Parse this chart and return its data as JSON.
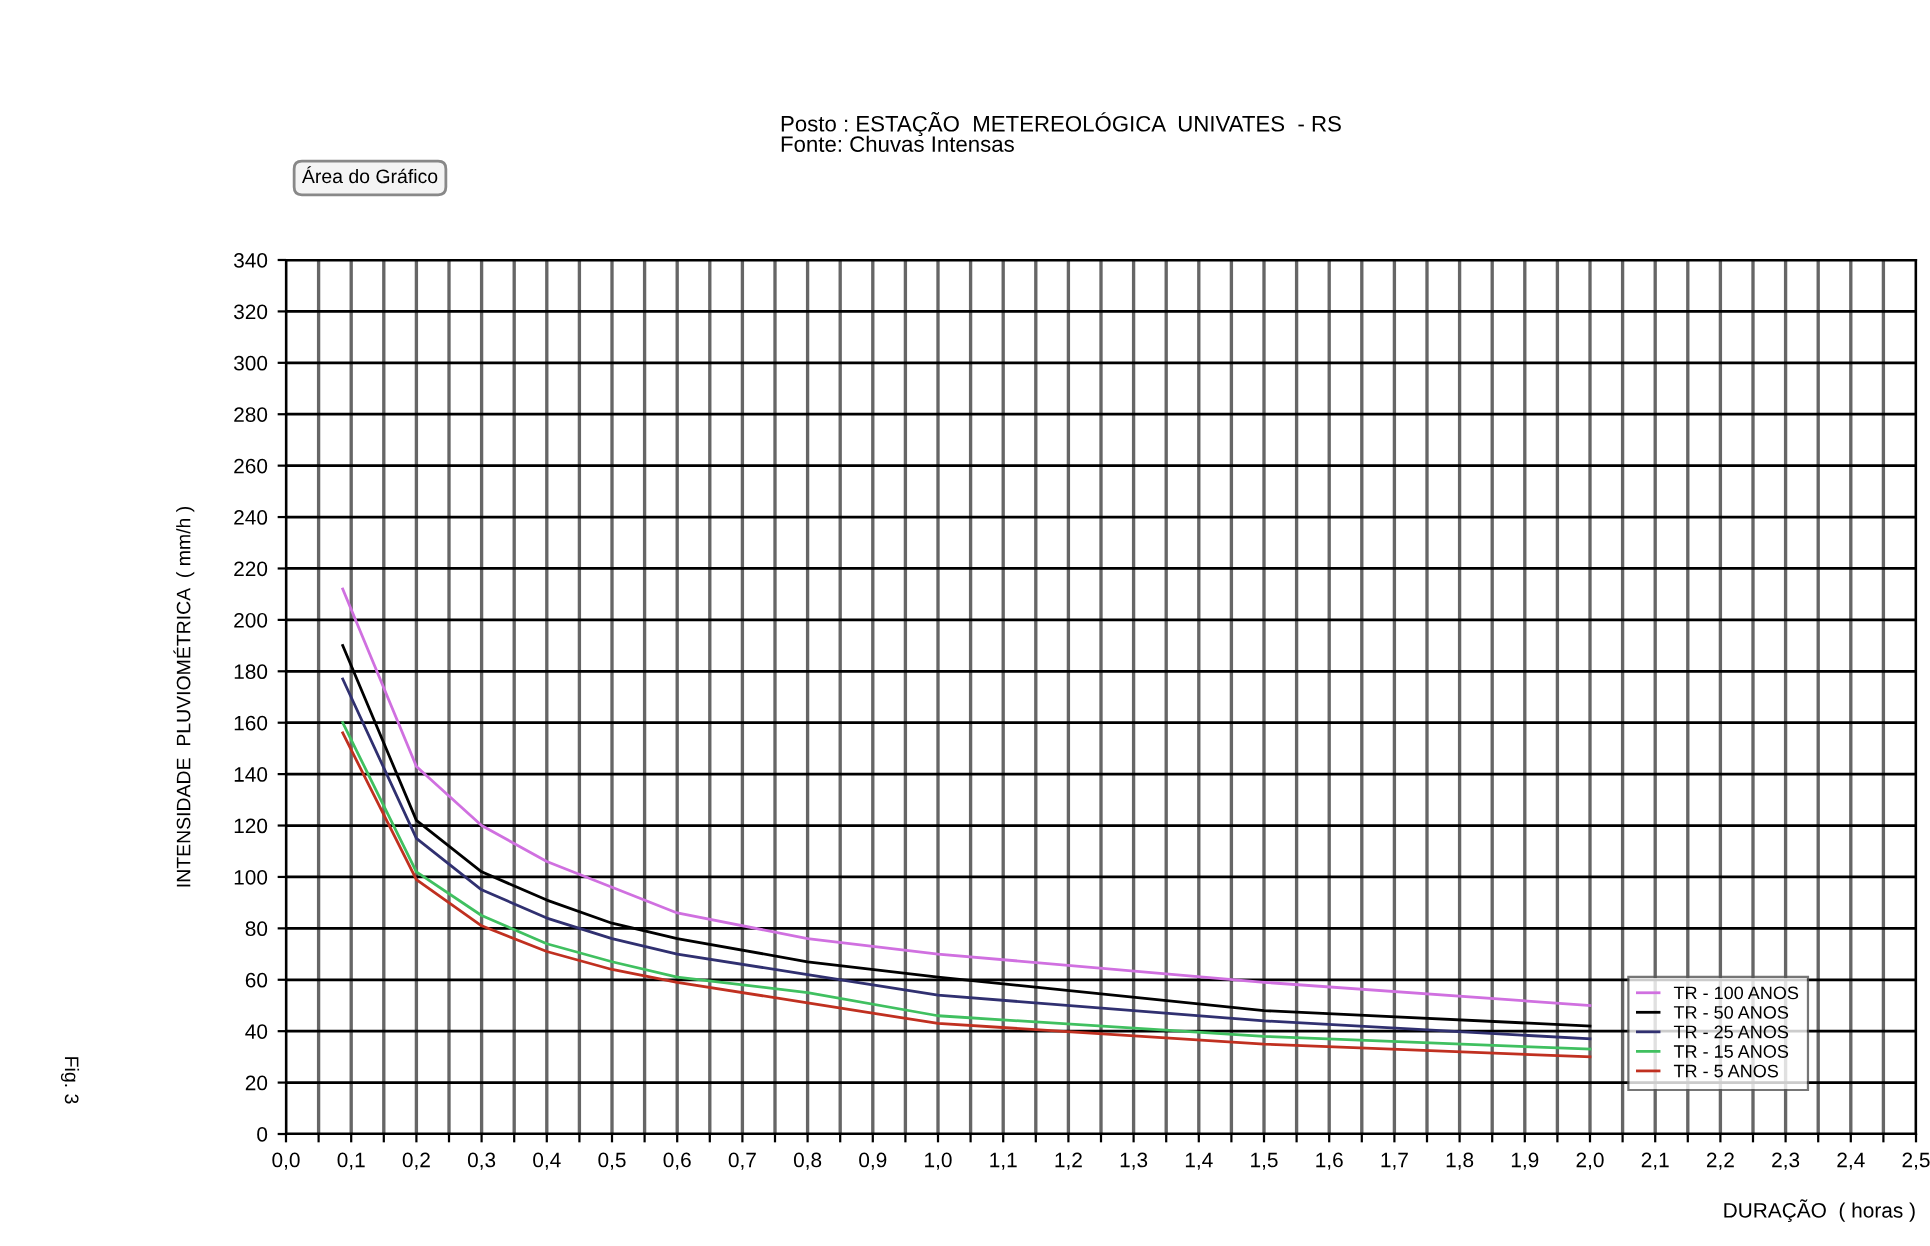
{
  "chart_data": {
    "type": "line",
    "title": "Posto : ESTAÇÃO  METEREOLÓGICA  UNIVATES  - RS",
    "subtitle": "Fonte: Chuvas Intensas",
    "xlabel": "DURAÇÃO  ( horas )",
    "ylabel": "INTENSIDADE  PLUVIOMÉTRICA  ( mm/h )",
    "annotations": [
      "Área do Gráfico",
      "Fig. 3"
    ],
    "x": [
      0.087,
      0.2,
      0.3,
      0.4,
      0.5,
      0.6,
      0.8,
      1.0,
      1.5,
      2.0
    ],
    "series": [
      {
        "name": "TR - 100 ANOS",
        "color": "#d070e0",
        "values": [
          212,
          143,
          120,
          106,
          96,
          86,
          76,
          70,
          59,
          50
        ]
      },
      {
        "name": "TR - 50 ANOS",
        "color": "#000000",
        "values": [
          190,
          122,
          102,
          91,
          82,
          76,
          67,
          61,
          48,
          42
        ]
      },
      {
        "name": "TR - 25 ANOS",
        "color": "#303070",
        "values": [
          177,
          115,
          95,
          84,
          76,
          70,
          62,
          54,
          44,
          37
        ]
      },
      {
        "name": "TR - 15 ANOS",
        "color": "#40c060",
        "values": [
          160,
          102,
          85,
          74,
          67,
          61,
          55,
          46,
          38,
          33
        ]
      },
      {
        "name": "TR - 5 ANOS",
        "color": "#c03020",
        "values": [
          156,
          99,
          81,
          71,
          64,
          59,
          51,
          43,
          35,
          30
        ]
      }
    ],
    "xlim": [
      0,
      2.5
    ],
    "xticks": [
      {
        "value": 0,
        "label": "0,0"
      },
      {
        "value": 0.05,
        "label": null
      },
      {
        "value": 0.1,
        "label": "0,1"
      },
      {
        "value": 0.15,
        "label": null
      },
      {
        "value": 0.2,
        "label": "0,2"
      },
      {
        "value": 0.25,
        "label": null
      },
      {
        "value": 0.3,
        "label": "0,3"
      },
      {
        "value": 0.35,
        "label": null
      },
      {
        "value": 0.4,
        "label": "0,4"
      },
      {
        "value": 0.45,
        "label": null
      },
      {
        "value": 0.5,
        "label": "0,5"
      },
      {
        "value": 0.55,
        "label": null
      },
      {
        "value": 0.6,
        "label": "0,6"
      },
      {
        "value": 0.65,
        "label": null
      },
      {
        "value": 0.7,
        "label": "0,7"
      },
      {
        "value": 0.75,
        "label": null
      },
      {
        "value": 0.8,
        "label": "0,8"
      },
      {
        "value": 0.85,
        "label": null
      },
      {
        "value": 0.9,
        "label": "0,9"
      },
      {
        "value": 0.95,
        "label": null
      },
      {
        "value": 1.0,
        "label": "1,0"
      },
      {
        "value": 1.05,
        "label": null
      },
      {
        "value": 1.1,
        "label": "1,1"
      },
      {
        "value": 1.15,
        "label": null
      },
      {
        "value": 1.2,
        "label": "1,2"
      },
      {
        "value": 1.25,
        "label": null
      },
      {
        "value": 1.3,
        "label": "1,3"
      },
      {
        "value": 1.35,
        "label": null
      },
      {
        "value": 1.4,
        "label": "1,4"
      },
      {
        "value": 1.45,
        "label": null
      },
      {
        "value": 1.5,
        "label": "1,5"
      },
      {
        "value": 1.55,
        "label": null
      },
      {
        "value": 1.6,
        "label": "1,6"
      },
      {
        "value": 1.65,
        "label": null
      },
      {
        "value": 1.7,
        "label": "1,7"
      },
      {
        "value": 1.75,
        "label": null
      },
      {
        "value": 1.8,
        "label": "1,8"
      },
      {
        "value": 1.85,
        "label": null
      },
      {
        "value": 1.9,
        "label": "1,9"
      },
      {
        "value": 1.95,
        "label": null
      },
      {
        "value": 2.0,
        "label": "2,0"
      },
      {
        "value": 2.05,
        "label": null
      },
      {
        "value": 2.1,
        "label": "2,1"
      },
      {
        "value": 2.15,
        "label": null
      },
      {
        "value": 2.2,
        "label": "2,2"
      },
      {
        "value": 2.25,
        "label": null
      },
      {
        "value": 2.3,
        "label": "2,3"
      },
      {
        "value": 2.35,
        "label": null
      },
      {
        "value": 2.4,
        "label": "2,4"
      },
      {
        "value": 2.45,
        "label": null
      },
      {
        "value": 2.5,
        "label": "2,5"
      }
    ],
    "ylim": [
      0,
      340
    ],
    "yticks": [
      0,
      20,
      40,
      60,
      80,
      100,
      120,
      140,
      160,
      180,
      200,
      220,
      240,
      260,
      280,
      300,
      320,
      340
    ],
    "grid": true,
    "legend": "right",
    "marker": "none",
    "line_style": "solid"
  }
}
